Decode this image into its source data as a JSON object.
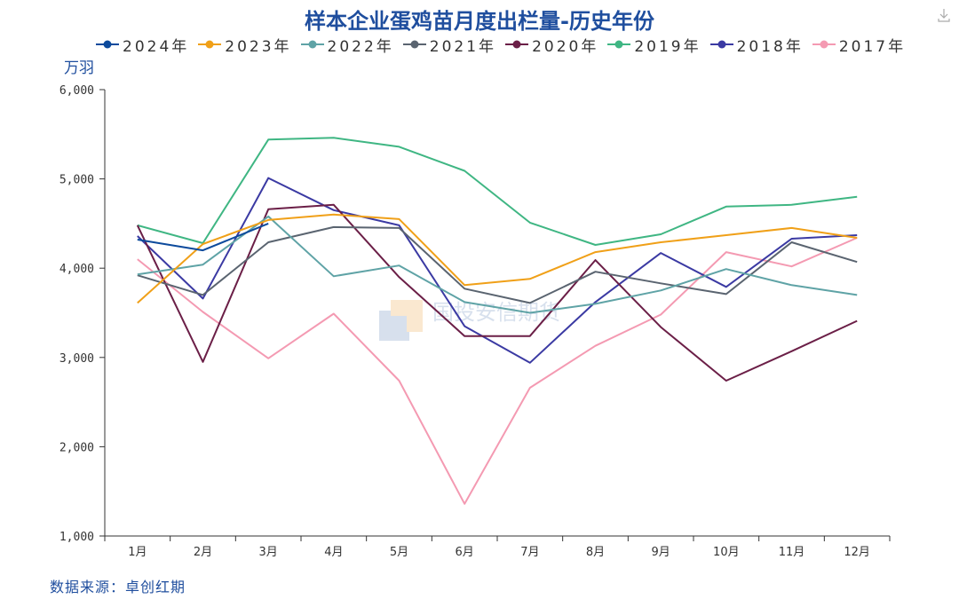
{
  "chart_data": {
    "type": "line",
    "title": "样本企业蛋鸡苗月度出栏量-历史年份",
    "ylabel": "万羽",
    "xlabel": "",
    "categories": [
      "1月",
      "2月",
      "3月",
      "4月",
      "5月",
      "6月",
      "7月",
      "8月",
      "9月",
      "10月",
      "11月",
      "12月"
    ],
    "ylim": [
      1000,
      6000
    ],
    "yticks": [
      "1,000",
      "2,000",
      "3,000",
      "4,000",
      "5,000",
      "6,000"
    ],
    "ytick_values": [
      1000,
      2000,
      3000,
      4000,
      5000,
      6000
    ],
    "grid": false,
    "legend_position": "top",
    "series": [
      {
        "name": "2024年",
        "color": "#0c4a9c",
        "values": [
          4320,
          4200,
          4500,
          null,
          null,
          null,
          null,
          null,
          null,
          null,
          null,
          null
        ]
      },
      {
        "name": "2023年",
        "color": "#f0a018",
        "values": [
          3610,
          4270,
          4540,
          4600,
          4550,
          3810,
          3880,
          4180,
          4290,
          4370,
          4450,
          4340
        ]
      },
      {
        "name": "2022年",
        "color": "#5fa3a6",
        "values": [
          3930,
          4040,
          4580,
          3910,
          4030,
          3620,
          3500,
          3600,
          3750,
          3990,
          3810,
          3700
        ]
      },
      {
        "name": "2021年",
        "color": "#5a6470",
        "values": [
          3920,
          3700,
          4290,
          4460,
          4450,
          3770,
          3610,
          3960,
          3830,
          3710,
          4290,
          4070
        ]
      },
      {
        "name": "2020年",
        "color": "#6b1f47",
        "values": [
          4480,
          2950,
          4660,
          4710,
          3900,
          3240,
          3240,
          4090,
          3340,
          2740,
          3070,
          3410
        ]
      },
      {
        "name": "2019年",
        "color": "#3fb683",
        "values": [
          4480,
          4280,
          5440,
          5460,
          5360,
          5090,
          4510,
          4260,
          4380,
          4690,
          4710,
          4800
        ]
      },
      {
        "name": "2018年",
        "color": "#3b3aa3",
        "values": [
          4360,
          3660,
          5010,
          4650,
          4480,
          3350,
          2940,
          3620,
          4170,
          3790,
          4330,
          4370
        ]
      },
      {
        "name": "2017年",
        "color": "#f49ab2",
        "values": [
          4100,
          3510,
          2990,
          3490,
          2740,
          1360,
          2660,
          3130,
          3480,
          4180,
          4020,
          4340
        ]
      }
    ]
  },
  "source": "数据来源：卓创红期",
  "watermark": "国投安信期货",
  "icons": {
    "download": "download-icon"
  }
}
